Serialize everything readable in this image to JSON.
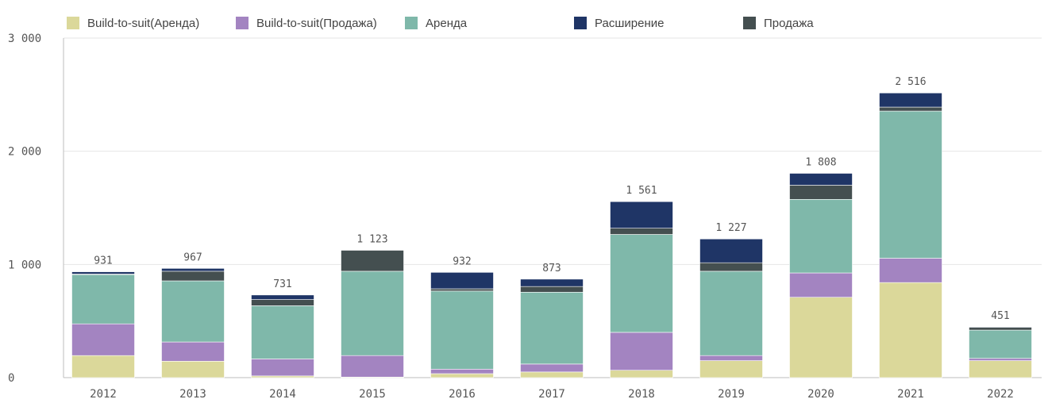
{
  "chart_data": {
    "type": "bar",
    "stacked": true,
    "categories": [
      "2012",
      "2013",
      "2014",
      "2015",
      "2016",
      "2017",
      "2018",
      "2019",
      "2020",
      "2021",
      "2022"
    ],
    "series": [
      {
        "name": "Build-to-suit(Аренда)",
        "color": "#dbd89a",
        "values": [
          195,
          145,
          15,
          5,
          35,
          50,
          65,
          150,
          710,
          840,
          150
        ]
      },
      {
        "name": "Build-to-suit(Продажа)",
        "color": "#a384c1",
        "values": [
          280,
          170,
          150,
          190,
          40,
          70,
          335,
          45,
          215,
          215,
          20
        ]
      },
      {
        "name": "Аренда",
        "color": "#7fb8aa",
        "values": [
          435,
          540,
          470,
          745,
          690,
          635,
          865,
          745,
          650,
          1300,
          250
        ]
      },
      {
        "name": "Расширение",
        "color": "#1f3566",
        "values": [
          20,
          25,
          40,
          0,
          145,
          65,
          235,
          210,
          105,
          125,
          5
        ]
      },
      {
        "name": "Продажа",
        "color": "#444f50",
        "values": [
          5,
          85,
          55,
          185,
          20,
          50,
          55,
          75,
          125,
          35,
          25
        ]
      }
    ],
    "stack_order": [
      "Build-to-suit(Аренда)",
      "Build-to-suit(Продажа)",
      "Аренда",
      "Продажа",
      "Расширение"
    ],
    "totals": [
      "931",
      "967",
      "731",
      "1 123",
      "932",
      "873",
      "1 561",
      "1 227",
      "1 808",
      "2 516",
      "451"
    ],
    "y_ticks": [
      {
        "value": 0,
        "label": "0"
      },
      {
        "value": 1000,
        "label": "1 000"
      },
      {
        "value": 2000,
        "label": "2 000"
      },
      {
        "value": 3000,
        "label": "3 000"
      }
    ],
    "ylim": [
      0,
      3000
    ],
    "grid": true,
    "legend": "top-left"
  }
}
